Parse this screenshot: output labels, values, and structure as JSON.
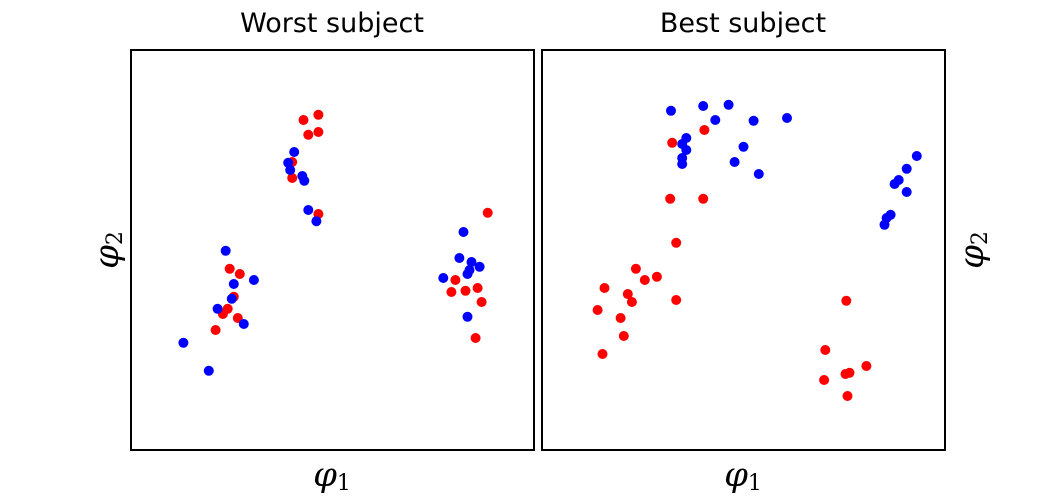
{
  "colors": {
    "red": "#ff0000",
    "blue": "#0000ff"
  },
  "chart_data": [
    {
      "type": "scatter",
      "title": "Worst subject",
      "xlabel": "φ1",
      "ylabel": "φ2",
      "xlabel_parts": {
        "main": "φ",
        "sub": "1"
      },
      "ylabel_parts": {
        "main": "φ",
        "sub": "2"
      },
      "ylabel_side": "left",
      "xlim": [
        0,
        100
      ],
      "ylim": [
        0,
        100
      ],
      "ticks": "none",
      "grid": false,
      "series": [
        {
          "color": "#ff0000",
          "points": [
            [
              42.8,
              82.5
            ],
            [
              46.5,
              83.8
            ],
            [
              44.0,
              78.8
            ],
            [
              46.5,
              79.5
            ],
            [
              40.0,
              72.0
            ],
            [
              40.0,
              68.0
            ],
            [
              46.5,
              59.0
            ],
            [
              24.5,
              45.3
            ],
            [
              27.0,
              44.0
            ],
            [
              25.5,
              38.3
            ],
            [
              24.0,
              35.3
            ],
            [
              22.8,
              34.0
            ],
            [
              26.5,
              33.0
            ],
            [
              21.0,
              30.0
            ],
            [
              88.5,
              59.3
            ],
            [
              80.5,
              42.5
            ],
            [
              86.0,
              40.5
            ],
            [
              83.0,
              39.8
            ],
            [
              79.5,
              39.5
            ],
            [
              87.0,
              37.0
            ],
            [
              85.5,
              28.0
            ]
          ]
        },
        {
          "color": "#0000ff",
          "points": [
            [
              40.5,
              74.5
            ],
            [
              39.0,
              71.8
            ],
            [
              39.5,
              70.0
            ],
            [
              42.5,
              68.5
            ],
            [
              43.0,
              67.3
            ],
            [
              44.0,
              60.0
            ],
            [
              46.0,
              57.2
            ],
            [
              23.5,
              49.8
            ],
            [
              30.5,
              42.5
            ],
            [
              25.5,
              41.5
            ],
            [
              25.0,
              37.8
            ],
            [
              21.5,
              35.3
            ],
            [
              28.0,
              31.5
            ],
            [
              13.0,
              26.8
            ],
            [
              19.3,
              19.8
            ],
            [
              82.5,
              54.5
            ],
            [
              81.5,
              48.0
            ],
            [
              84.5,
              47.0
            ],
            [
              86.5,
              45.8
            ],
            [
              84.0,
              45.0
            ],
            [
              83.5,
              44.0
            ],
            [
              77.5,
              43.0
            ],
            [
              83.5,
              33.3
            ]
          ]
        }
      ]
    },
    {
      "type": "scatter",
      "title": "Best subject",
      "xlabel": "φ1",
      "ylabel": "φ2",
      "xlabel_parts": {
        "main": "φ",
        "sub": "1"
      },
      "ylabel_parts": {
        "main": "φ",
        "sub": "2"
      },
      "ylabel_side": "right",
      "xlim": [
        0,
        100
      ],
      "ylim": [
        0,
        100
      ],
      "ticks": "none",
      "grid": false,
      "series": [
        {
          "color": "#ff0000",
          "points": [
            [
              40.3,
              80.0
            ],
            [
              32.3,
              76.8
            ],
            [
              31.8,
              62.8
            ],
            [
              40.0,
              62.8
            ],
            [
              33.3,
              51.8
            ],
            [
              23.3,
              45.3
            ],
            [
              28.5,
              43.3
            ],
            [
              25.5,
              42.5
            ],
            [
              15.5,
              40.5
            ],
            [
              21.3,
              39.0
            ],
            [
              22.3,
              37.0
            ],
            [
              33.3,
              37.5
            ],
            [
              13.8,
              35.0
            ],
            [
              19.5,
              33.0
            ],
            [
              20.3,
              28.5
            ],
            [
              15.0,
              24.0
            ],
            [
              75.5,
              37.3
            ],
            [
              70.3,
              25.0
            ],
            [
              80.5,
              21.0
            ],
            [
              76.3,
              19.3
            ],
            [
              75.3,
              19.0
            ],
            [
              70.0,
              17.5
            ],
            [
              75.8,
              13.5
            ]
          ]
        },
        {
          "color": "#0000ff",
          "points": [
            [
              32.0,
              84.8
            ],
            [
              40.0,
              86.0
            ],
            [
              46.3,
              86.3
            ],
            [
              43.0,
              82.5
            ],
            [
              52.5,
              82.3
            ],
            [
              60.8,
              83.0
            ],
            [
              35.8,
              78.0
            ],
            [
              34.8,
              76.5
            ],
            [
              35.8,
              75.0
            ],
            [
              50.0,
              75.8
            ],
            [
              34.8,
              73.0
            ],
            [
              34.8,
              71.5
            ],
            [
              47.8,
              72.0
            ],
            [
              53.8,
              69.0
            ],
            [
              93.0,
              73.5
            ],
            [
              90.5,
              70.3
            ],
            [
              88.5,
              67.5
            ],
            [
              87.5,
              66.5
            ],
            [
              90.5,
              64.5
            ],
            [
              86.5,
              58.8
            ],
            [
              85.5,
              58.0
            ],
            [
              85.0,
              56.3
            ]
          ]
        }
      ]
    }
  ]
}
